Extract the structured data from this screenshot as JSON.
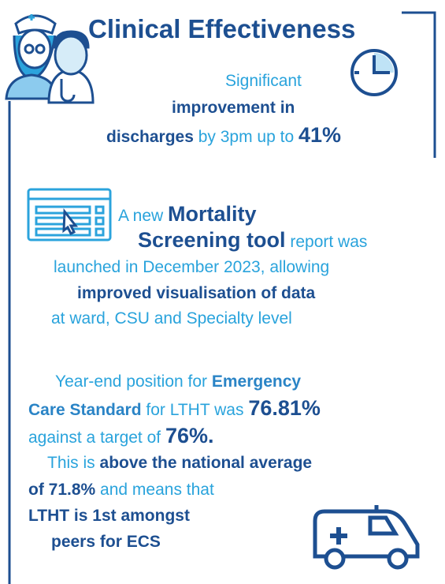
{
  "title": "Clinical Effectiveness",
  "discharges": {
    "lines": [
      [
        "Significant"
      ],
      [
        "improvement in"
      ],
      [
        "discharges",
        " by 3pm up to ",
        "41%"
      ]
    ]
  },
  "mortality": {
    "lines": [
      [
        "A new ",
        "Mortality"
      ],
      [
        "Screening tool",
        " report was"
      ],
      [
        "launched in December 2023, allowing"
      ],
      [
        "improved visualisation of data"
      ],
      [
        "at ward, CSU and Specialty level"
      ]
    ]
  },
  "ecs": {
    "lines": [
      [
        "Year-end position for ",
        "Emergency"
      ],
      [
        "Care Standard",
        " for LTHT was ",
        "76.81%"
      ],
      [
        "against a target of ",
        "76%."
      ],
      [
        "This is ",
        "above the national average"
      ],
      [
        "of 71.8%",
        " and means that"
      ],
      [
        "LTHT is 1st amongst"
      ],
      [
        "peers for ECS"
      ]
    ]
  }
}
